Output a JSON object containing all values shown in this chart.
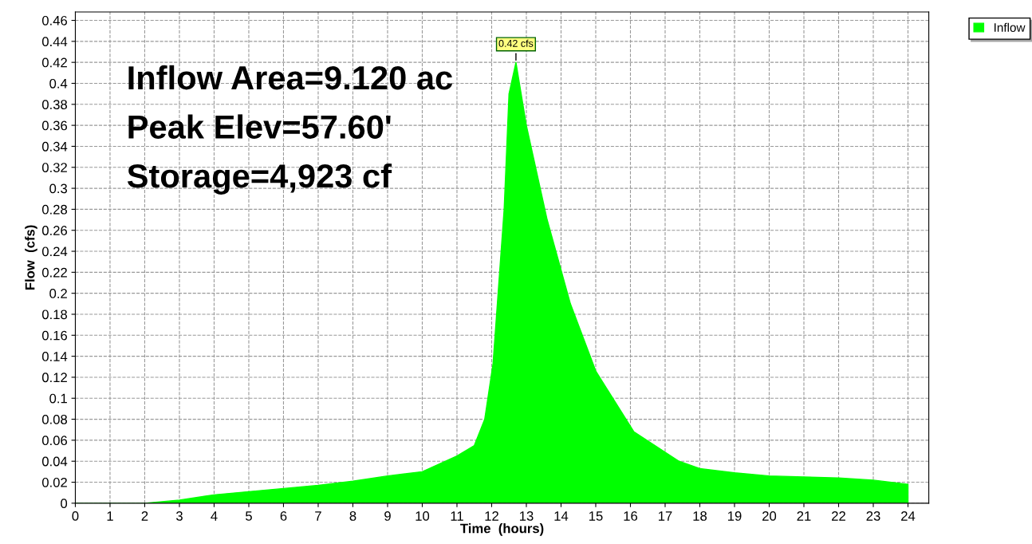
{
  "chart_data": {
    "type": "area",
    "xlabel": "Time  (hours)",
    "ylabel": "Flow  (cfs)",
    "x": [
      0,
      1,
      2,
      3,
      4,
      5,
      6,
      7,
      8,
      9,
      10,
      11,
      11.5,
      11.8,
      12.04,
      12.36,
      12.5,
      12.7,
      13.0,
      13.6,
      14.27,
      15.0,
      16.1,
      17.4,
      18,
      19,
      20,
      21,
      22,
      23,
      24
    ],
    "series": [
      {
        "name": "Inflow",
        "color": "#00ff00",
        "values": [
          0,
          0,
          0,
          0.003,
          0.008,
          0.011,
          0.014,
          0.017,
          0.021,
          0.026,
          0.03,
          0.045,
          0.055,
          0.08,
          0.133,
          0.28,
          0.39,
          0.42,
          0.36,
          0.27,
          0.19,
          0.126,
          0.068,
          0.04,
          0.033,
          0.029,
          0.026,
          0.025,
          0.024,
          0.022,
          0.018
        ]
      }
    ],
    "xlim": [
      0,
      24.6
    ],
    "ylim": [
      0,
      0.468
    ],
    "xticks": [
      0,
      1,
      2,
      3,
      4,
      5,
      6,
      7,
      8,
      9,
      10,
      11,
      12,
      13,
      14,
      15,
      16,
      17,
      18,
      19,
      20,
      21,
      22,
      23,
      24
    ],
    "yticks": [
      0,
      0.02,
      0.04,
      0.06,
      0.08,
      0.1,
      0.12,
      0.14,
      0.16,
      0.18,
      0.2,
      0.22,
      0.24,
      0.26,
      0.28,
      0.3,
      0.32,
      0.34,
      0.36,
      0.38,
      0.4,
      0.42,
      0.44,
      0.46
    ],
    "grid": true,
    "line_style": "dashed",
    "legend": "top right",
    "annotations": [
      "Inflow Area=9.120 ac",
      "Peak Elev=57.60'",
      "Storage=4,923 cf",
      {
        "text": "0.42 cfs",
        "x": 12.7,
        "y": 0.42
      }
    ]
  }
}
